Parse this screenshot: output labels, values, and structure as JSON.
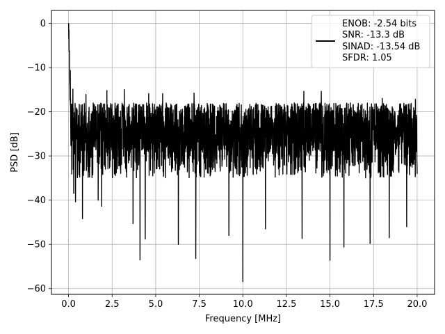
{
  "chart_data": {
    "type": "line",
    "title": "",
    "xlabel": "Frequency [MHz]",
    "ylabel": "PSD [dB]",
    "xlim": [
      -0.98,
      21.0
    ],
    "ylim": [
      -61.3,
      2.9
    ],
    "xticks": [
      0.0,
      2.5,
      5.0,
      7.5,
      10.0,
      12.5,
      15.0,
      17.5,
      20.0
    ],
    "xtick_labels": [
      "0.0",
      "2.5",
      "5.0",
      "7.5",
      "10.0",
      "12.5",
      "15.0",
      "17.5",
      "20.0"
    ],
    "yticks": [
      0,
      -10,
      -20,
      -30,
      -40,
      -50,
      -60
    ],
    "ytick_labels": [
      "0",
      "−10",
      "−20",
      "−30",
      "−40",
      "−50",
      "−60"
    ],
    "grid": true,
    "legend_position": "top-right",
    "series": [
      {
        "color": "#000000",
        "x_range": [
          0.0,
          20.0
        ],
        "peak": {
          "x": 0.0,
          "y": 0.0
        },
        "typical_range": [
          -35,
          -18
        ],
        "notable_minima": [
          {
            "x": 0.3,
            "y": -38.5
          },
          {
            "x": 0.4,
            "y": -40.4
          },
          {
            "x": 0.8,
            "y": -44.2
          },
          {
            "x": 1.7,
            "y": -40.0
          },
          {
            "x": 1.9,
            "y": -41.4
          },
          {
            "x": 3.7,
            "y": -45.3
          },
          {
            "x": 4.1,
            "y": -53.5
          },
          {
            "x": 4.4,
            "y": -48.8
          },
          {
            "x": 6.3,
            "y": -50.0
          },
          {
            "x": 7.3,
            "y": -53.2
          },
          {
            "x": 9.2,
            "y": -48.0
          },
          {
            "x": 10.0,
            "y": -58.4
          },
          {
            "x": 11.3,
            "y": -46.5
          },
          {
            "x": 13.4,
            "y": -48.7
          },
          {
            "x": 15.0,
            "y": -53.6
          },
          {
            "x": 15.8,
            "y": -50.6
          },
          {
            "x": 17.3,
            "y": -49.8
          },
          {
            "x": 18.4,
            "y": -48.5
          },
          {
            "x": 19.4,
            "y": -46.0
          }
        ],
        "notable_maxima": [
          {
            "x": 0.05,
            "y": -6.3
          },
          {
            "x": 0.1,
            "y": -10.7
          },
          {
            "x": 0.25,
            "y": -14.9
          },
          {
            "x": 1.0,
            "y": -16.1
          },
          {
            "x": 2.2,
            "y": -15.2
          },
          {
            "x": 3.2,
            "y": -15.0
          },
          {
            "x": 4.6,
            "y": -15.9
          },
          {
            "x": 5.4,
            "y": -15.9
          },
          {
            "x": 7.2,
            "y": -15.8
          },
          {
            "x": 13.5,
            "y": -15.4
          },
          {
            "x": 14.5,
            "y": -15.4
          },
          {
            "x": 18.0,
            "y": -17.0
          },
          {
            "x": 19.9,
            "y": -17.2
          }
        ]
      }
    ],
    "legend": {
      "lines": [
        "ENOB: -2.54 bits",
        "SNR: -13.3 dB",
        "SINAD: -13.54 dB",
        "SFDR: 1.05"
      ]
    }
  }
}
